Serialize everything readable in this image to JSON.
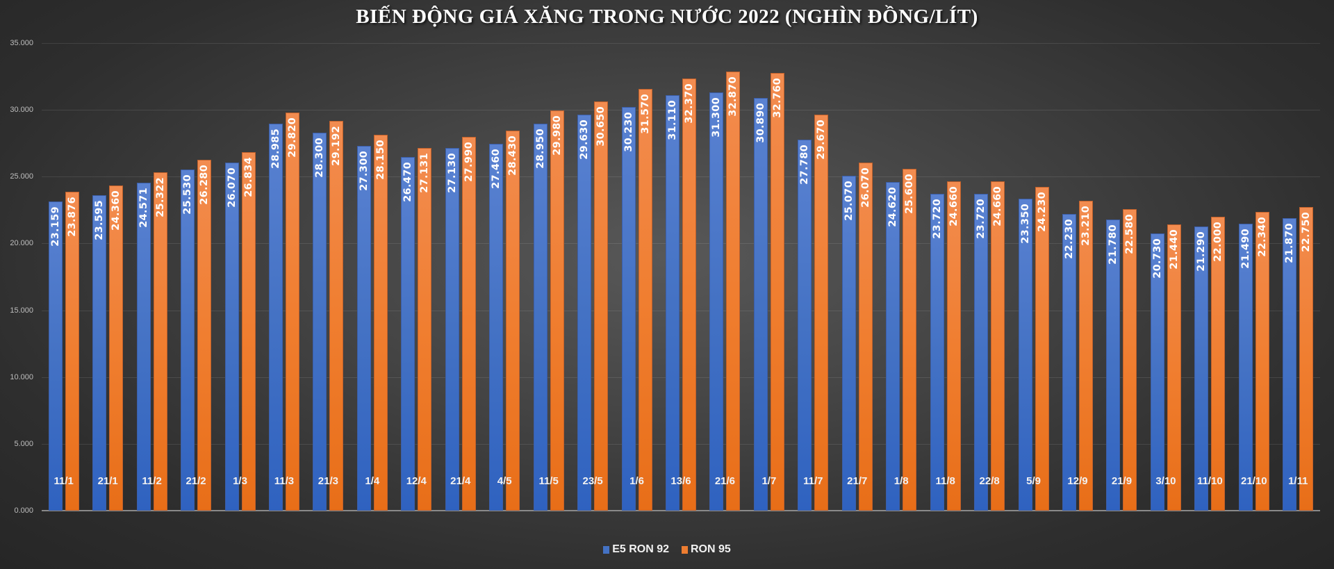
{
  "chart_data": {
    "type": "bar",
    "title": "BIẾN ĐỘNG GIÁ XĂNG TRONG NƯỚC 2022 (NGHÌN ĐỒNG/LÍT)",
    "xlabel": "",
    "ylabel": "",
    "ylim": [
      0,
      35000
    ],
    "yticks": [
      "0.000",
      "5.000",
      "10.000",
      "15.000",
      "20.000",
      "25.000",
      "30.000",
      "35.000"
    ],
    "grid": true,
    "legend_position": "bottom",
    "categories": [
      "11/1",
      "21/1",
      "11/2",
      "21/2",
      "1/3",
      "11/3",
      "21/3",
      "1/4",
      "12/4",
      "21/4",
      "4/5",
      "11/5",
      "23/5",
      "1/6",
      "13/6",
      "21/6",
      "1/7",
      "11/7",
      "21/7",
      "1/8",
      "11/8",
      "22/8",
      "5/9",
      "12/9",
      "21/9",
      "3/10",
      "11/10",
      "21/10",
      "1/11"
    ],
    "series": [
      {
        "name": "E5 RON 92",
        "color": "#4472C4",
        "values": [
          23159,
          23595,
          24571,
          25530,
          26070,
          28985,
          28300,
          27300,
          26470,
          27130,
          27460,
          28950,
          29630,
          30230,
          31110,
          31300,
          30890,
          27780,
          25070,
          24620,
          23720,
          23720,
          23350,
          22230,
          21780,
          20730,
          21290,
          21490,
          21870
        ],
        "labels": [
          "23.159",
          "23.595",
          "24.571",
          "25.530",
          "26.070",
          "28.985",
          "28.300",
          "27.300",
          "26.470",
          "27.130",
          "27.460",
          "28.950",
          "29.630",
          "30.230",
          "31.110",
          "31.300",
          "30.890",
          "27.780",
          "25.070",
          "24.620",
          "23.720",
          "23.720",
          "23.350",
          "22.230",
          "21.780",
          "20.730",
          "21.290",
          "21.490",
          "21.870"
        ]
      },
      {
        "name": "RON 95",
        "color": "#ED7D31",
        "values": [
          23876,
          24360,
          25322,
          26280,
          26834,
          29820,
          29192,
          28150,
          27131,
          27990,
          28430,
          29980,
          30650,
          31570,
          32370,
          32870,
          32760,
          29670,
          26070,
          25600,
          24660,
          24660,
          24230,
          23210,
          22580,
          21440,
          22000,
          22340,
          22750
        ],
        "labels": [
          "23.876",
          "24.360",
          "25.322",
          "26.280",
          "26.834",
          "29.820",
          "29.192",
          "28.150",
          "27.131",
          "27.990",
          "28.430",
          "29.980",
          "30.650",
          "31.570",
          "32.370",
          "32.870",
          "32.760",
          "29.670",
          "26.070",
          "25.600",
          "24.660",
          "24.660",
          "24.230",
          "23.210",
          "22.580",
          "21.440",
          "22.000",
          "22.340",
          "22.750"
        ]
      }
    ]
  },
  "legend": [
    {
      "label": "E5 RON 92",
      "color": "#4472C4"
    },
    {
      "label": "RON 95",
      "color": "#ED7D31"
    }
  ]
}
